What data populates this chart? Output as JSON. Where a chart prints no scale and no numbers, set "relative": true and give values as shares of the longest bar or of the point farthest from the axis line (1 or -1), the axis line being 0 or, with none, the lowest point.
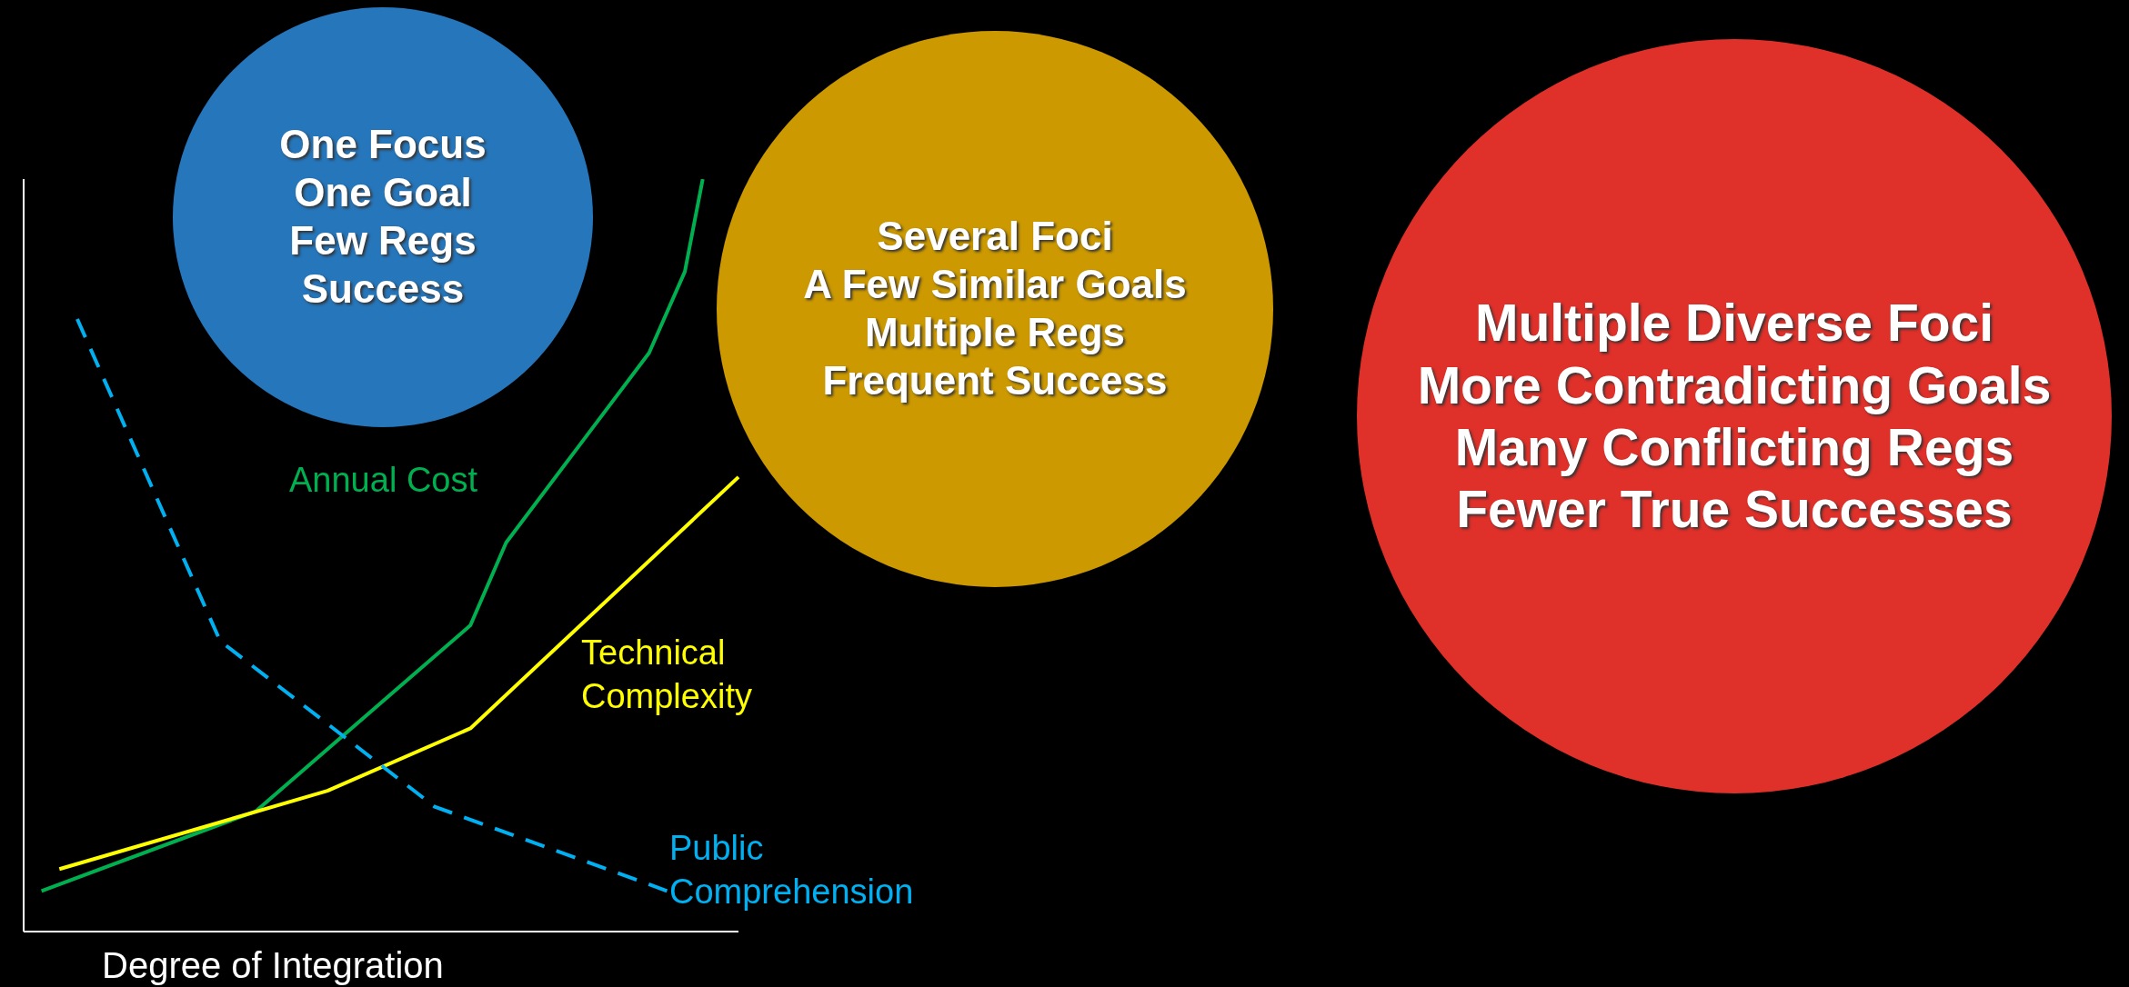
{
  "chart_data": {
    "type": "line",
    "relative": true,
    "xlabel": "Degree of Integration",
    "grid": false,
    "legend": false,
    "marker": "none",
    "categories": [
      null,
      null,
      null,
      null,
      null,
      null,
      null,
      null,
      null,
      null,
      null,
      null,
      null,
      null,
      null,
      null,
      null,
      null,
      null,
      null,
      null,
      null,
      null,
      null,
      null,
      null,
      null,
      null,
      null,
      null,
      null,
      null,
      null,
      null,
      null,
      null,
      null,
      null,
      null,
      null,
      null
    ],
    "series": [
      {
        "name": "Annual Cost",
        "color": "#00b050",
        "line_style": "solid",
        "values": [
          null,
          0.054,
          null,
          null,
          null,
          null,
          null,
          null,
          null,
          null,
          null,
          null,
          null,
          0.16,
          null,
          null,
          null,
          null,
          null,
          null,
          null,
          null,
          null,
          null,
          null,
          0.407,
          null,
          0.517,
          null,
          null,
          null,
          0.643,
          null,
          null,
          null,
          0.769,
          null,
          0.877,
          1,
          null,
          null
        ]
      },
      {
        "name": "Technical\nComplexity",
        "color": "#ffff00",
        "line_style": "solid",
        "values": [
          null,
          null,
          0.083,
          null,
          null,
          null,
          null,
          null,
          null,
          null,
          null,
          null,
          null,
          null,
          null,
          null,
          null,
          0.187,
          null,
          null,
          null,
          null,
          null,
          null,
          null,
          0.27,
          null,
          null,
          null,
          null,
          null,
          null,
          null,
          null,
          null,
          null,
          null,
          null,
          null,
          null,
          0.604
        ]
      },
      {
        "name": "Public\nComprehension",
        "color": "#00b0f0",
        "line_style": "dashed",
        "values": [
          null,
          null,
          null,
          0.814,
          null,
          null,
          null,
          null,
          null,
          null,
          null,
          0.386,
          null,
          null,
          null,
          null,
          null,
          null,
          null,
          null,
          null,
          null,
          null,
          0.166,
          null,
          null,
          null,
          null,
          null,
          null,
          null,
          null,
          null,
          null,
          null,
          null,
          0.054,
          null,
          null,
          null,
          null
        ]
      }
    ],
    "annotations": [
      "One Focus\nOne Goal\nFew Regs\nSuccess",
      "Several Foci\nA Few Similar Goals\nMultiple Regs\nFrequent Success",
      "Multiple Diverse Foci\nMore Contradicting Goals\nMany Conflicting Regs\nFewer True Successes"
    ]
  }
}
